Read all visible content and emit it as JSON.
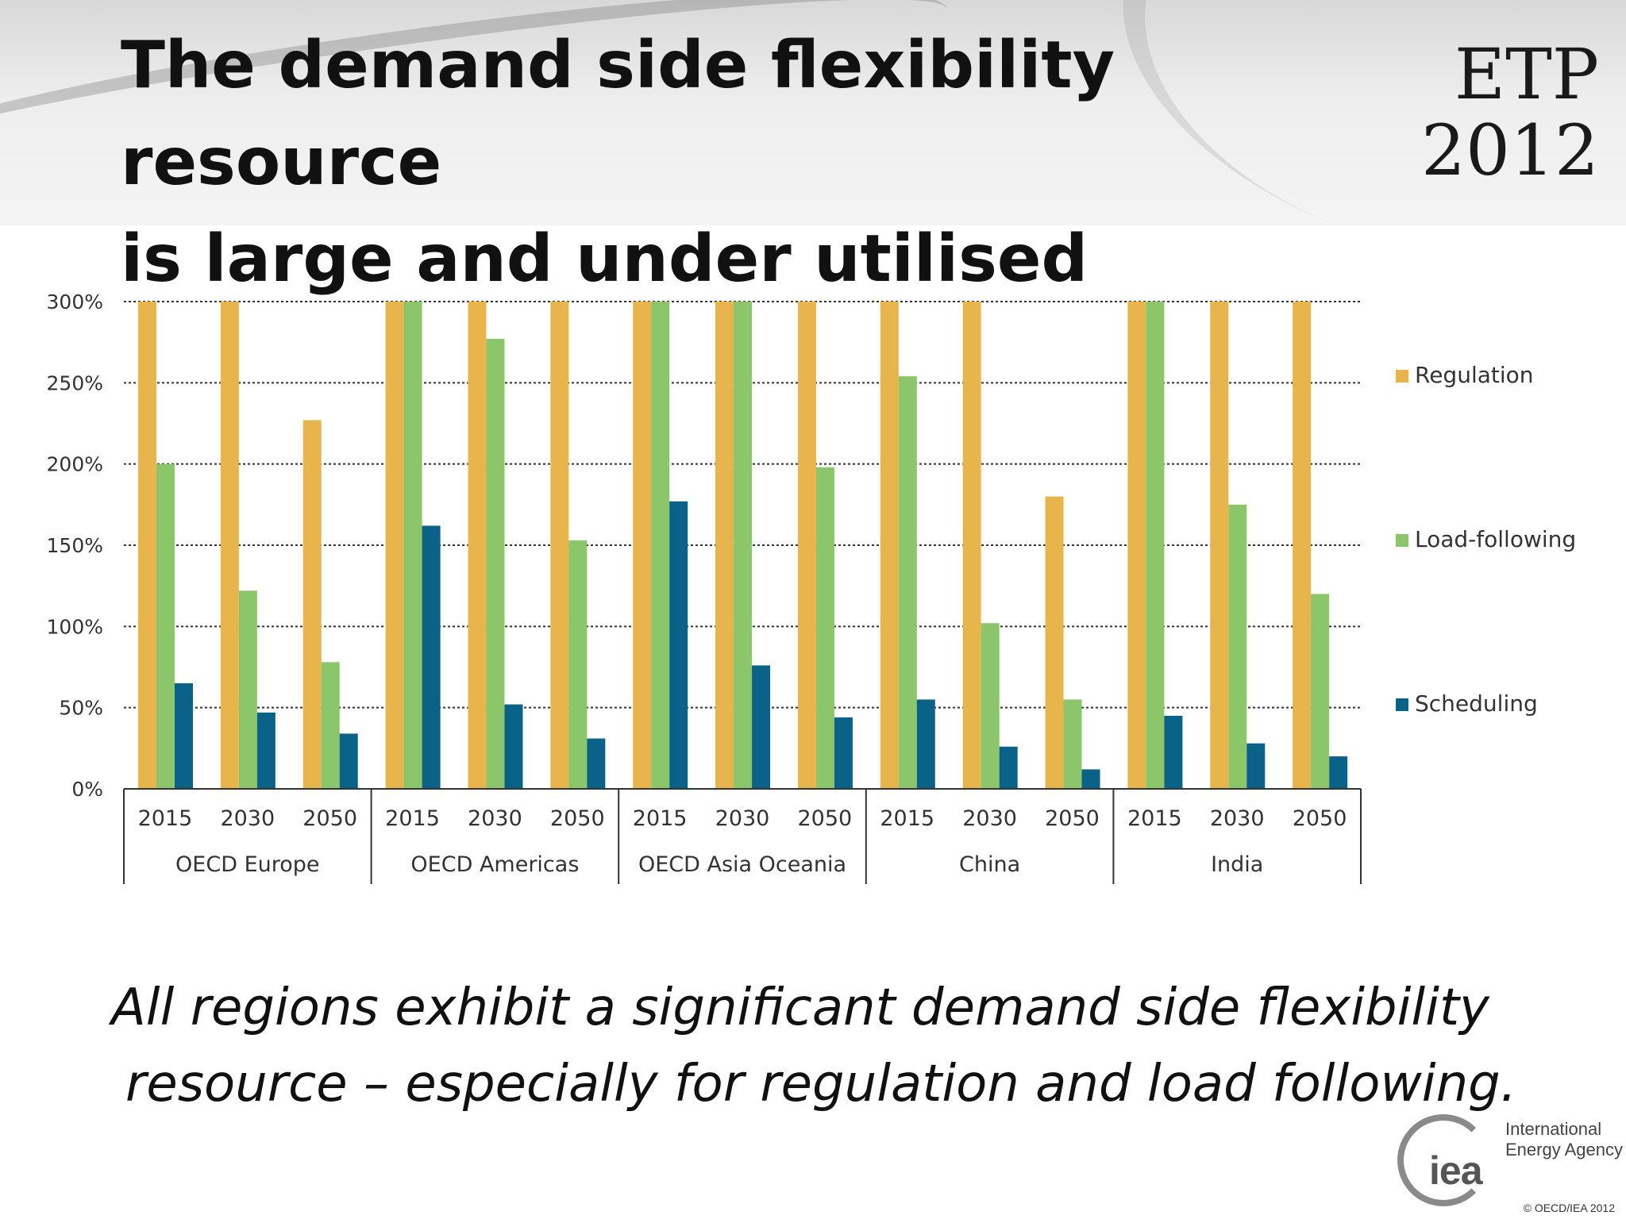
{
  "slide": {
    "title_line1": "The demand side flexibility resource",
    "title_line2": "is large and under utilised",
    "logo_etp": "ETP",
    "logo_year": "2012",
    "caption_line1": "All regions exhibit a significant demand side flexibility",
    "caption_line2": "resource – especially for regulation and load following.",
    "iea_mark": "iea",
    "iea_name_line1": "International",
    "iea_name_line2": "Energy Agency",
    "copyright": "© OECD/IEA 2012"
  },
  "chart_data": {
    "type": "bar",
    "title": "",
    "xlabel": "",
    "ylabel": "",
    "ylim": [
      0,
      300
    ],
    "yticks": [
      "0%",
      "50%",
      "100%",
      "150%",
      "200%",
      "250%",
      "300%"
    ],
    "grid": true,
    "legend_position": "right",
    "groups": [
      "OECD Europe",
      "OECD Americas",
      "OECD Asia Oceania",
      "China",
      "India"
    ],
    "years": [
      "2015",
      "2030",
      "2050"
    ],
    "categories": [
      "OECD Europe 2015",
      "OECD Europe 2030",
      "OECD Europe 2050",
      "OECD Americas 2015",
      "OECD Americas 2030",
      "OECD Americas 2050",
      "OECD Asia Oceania 2015",
      "OECD Asia Oceania 2030",
      "OECD Asia Oceania 2050",
      "China 2015",
      "China 2030",
      "China 2050",
      "India 2015",
      "India 2030",
      "India 2050"
    ],
    "series": [
      {
        "name": "Regulation",
        "color": "#E8B44C",
        "values": [
          300,
          300,
          227,
          300,
          300,
          300,
          300,
          300,
          300,
          300,
          300,
          180,
          300,
          300,
          300
        ]
      },
      {
        "name": "Load-following",
        "color": "#8CC66A",
        "values": [
          200,
          122,
          78,
          300,
          277,
          153,
          300,
          300,
          198,
          254,
          102,
          55,
          300,
          175,
          120
        ]
      },
      {
        "name": "Scheduling",
        "color": "#0B6288",
        "values": [
          65,
          47,
          34,
          162,
          52,
          31,
          177,
          76,
          44,
          55,
          26,
          12,
          45,
          28,
          20
        ]
      }
    ]
  }
}
